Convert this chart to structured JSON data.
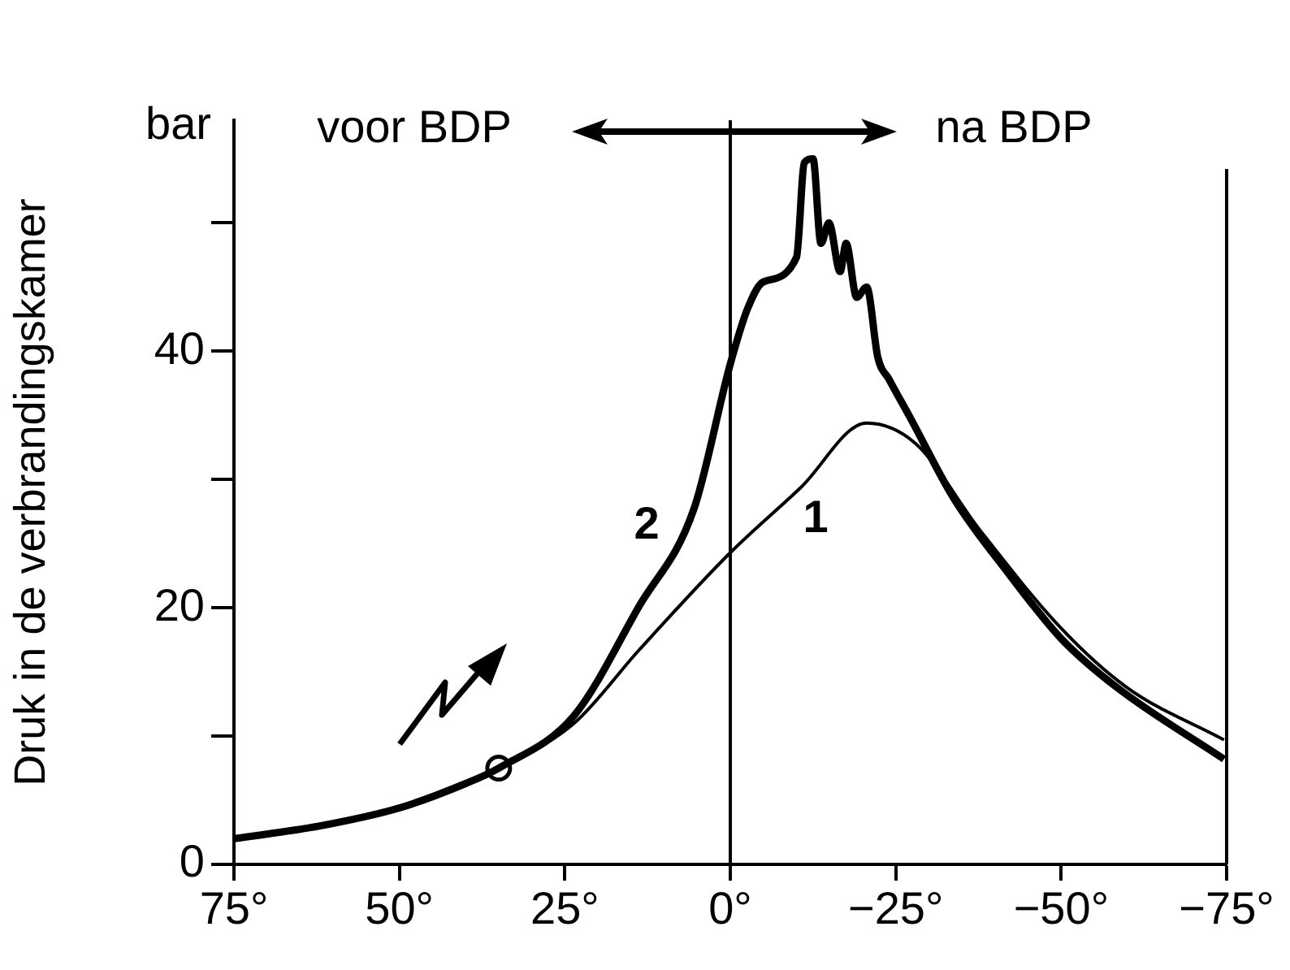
{
  "chart_data": {
    "type": "line",
    "ylabel": "Druk in de verbrandingskamer",
    "xlim": [
      75,
      -75
    ],
    "ylim": [
      0,
      58
    ],
    "xticks": [
      {
        "value": 75,
        "label": "75°"
      },
      {
        "value": 50,
        "label": "50°"
      },
      {
        "value": 25,
        "label": "25°"
      },
      {
        "value": 0,
        "label": "0°"
      },
      {
        "value": -25,
        "label": "−25°"
      },
      {
        "value": -50,
        "label": "−50°"
      },
      {
        "value": -75,
        "label": "−75°"
      }
    ],
    "yticks": [
      0,
      {
        "value": 10,
        "label": null
      },
      20,
      {
        "value": 30,
        "label": null
      },
      40,
      {
        "value": 50,
        "label": null
      }
    ],
    "grid": false,
    "legend": false,
    "series": [
      {
        "color": "#000000",
        "marker": "none",
        "x": [
          75,
          62,
          50,
          40,
          35,
          23.6,
          13.8,
          0,
          -10.7,
          -20.6,
          -28,
          -37.8,
          -50,
          -59.9,
          -74.6
        ],
        "values": [
          2,
          3,
          4.4,
          6.3,
          7.5,
          11,
          16.7,
          24.3,
          29.4,
          34.4,
          32.8,
          26,
          18.4,
          13.8,
          9.7
        ]
      },
      {
        "color": "#000000",
        "marker": "none",
        "x": [
          75,
          62,
          50,
          40,
          35,
          23.6,
          13.8,
          5.5,
          0,
          -2.6,
          -5,
          -10,
          -11.2,
          -12.5,
          -13.7,
          -14.9,
          -16.6,
          -17.5,
          -19.1,
          -20.6,
          -22.3,
          -24,
          -27.2,
          -33.8,
          -42,
          -50,
          -58.4,
          -74.6
        ],
        "values": [
          2,
          3,
          4.4,
          6.3,
          7.5,
          11.6,
          20.1,
          27.7,
          39,
          43.3,
          45.4,
          47.3,
          54.7,
          55,
          48.4,
          50,
          46.2,
          48.4,
          44.2,
          45,
          39.5,
          37.8,
          34.8,
          28.5,
          22.7,
          17.6,
          13.8,
          8.2
        ]
      },
      {
        "type": "scatter",
        "color": "#000000",
        "marker": "circle",
        "x": [
          35
        ],
        "values": [
          7.5
        ]
      }
    ],
    "ref_lines": [
      {
        "axis": "x",
        "value": 0
      }
    ],
    "annotations": [
      "bar",
      "2",
      "1",
      "voor BDP",
      "na BDP"
    ]
  }
}
